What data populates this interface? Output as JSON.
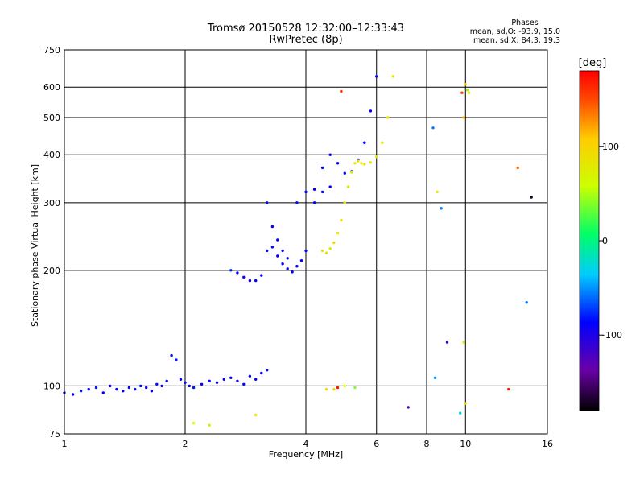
{
  "chart_data": {
    "type": "scatter",
    "title": "Tromsø 20150528 12:32:00–12:33:43",
    "subtitle": "RwPretec (8p)",
    "info": {
      "heading": "Phases",
      "line1": "mean, sd,O: -93.9, 15.0",
      "line2": "mean, sd,X: 84.3, 19.3"
    },
    "xlabel": "Frequency [MHz]",
    "ylabel": "Stationary phase Virtual Height [km]",
    "x_scale": "log",
    "y_scale": "log",
    "xlim": [
      1,
      16
    ],
    "ylim": [
      75,
      750
    ],
    "x_ticks": [
      1,
      2,
      4,
      6,
      8,
      10,
      16
    ],
    "y_ticks": [
      75,
      100,
      200,
      300,
      400,
      500,
      600,
      750
    ],
    "grid": true,
    "colorbar": {
      "label": "[deg]",
      "range": [
        -180,
        180
      ],
      "ticks": [
        -100,
        0,
        100
      ]
    },
    "series": [
      {
        "x": [
          1.0,
          1.05,
          1.1,
          1.15,
          1.2,
          1.25,
          1.3,
          1.35,
          1.4,
          1.45,
          1.5,
          1.55,
          1.6,
          1.65,
          1.7,
          1.75,
          1.8,
          1.85,
          1.9,
          1.95,
          2.0,
          2.05,
          2.1,
          2.2,
          2.3,
          2.4,
          2.5,
          2.6,
          2.7,
          2.8,
          2.9,
          3.0,
          3.1,
          3.2
        ],
        "y": [
          96,
          95,
          97,
          98,
          99,
          96,
          100,
          98,
          97,
          99,
          98,
          100,
          99,
          97,
          101,
          100,
          103,
          120,
          117,
          104,
          102,
          100,
          99,
          101,
          103,
          102,
          104,
          105,
          103,
          101,
          106,
          104,
          108,
          110
        ],
        "phase": [
          -95,
          -100,
          -92,
          -98,
          -90,
          -96,
          -99,
          -93,
          -97,
          -94,
          -92,
          -95,
          -100,
          -98,
          -90,
          -95,
          -92,
          -90,
          -85,
          -95,
          -93,
          -97,
          -90,
          -95,
          -92,
          -98,
          -96,
          -94,
          -99,
          -93,
          -91,
          -96,
          -95,
          -93
        ]
      },
      {
        "x": [
          2.6,
          2.7,
          2.8,
          2.9,
          3.0,
          3.1,
          3.2,
          3.3,
          3.4,
          3.5,
          3.6,
          3.7,
          3.8,
          3.9,
          4.0,
          4.2,
          4.4,
          4.6,
          4.8,
          5.0,
          5.2,
          5.4,
          5.6,
          5.8,
          6.0,
          3.2,
          3.3,
          3.4,
          3.5,
          3.6,
          3.8,
          4.0,
          4.2,
          4.4,
          4.6
        ],
        "y": [
          200,
          197,
          192,
          188,
          188,
          194,
          225,
          230,
          218,
          208,
          202,
          198,
          205,
          212,
          225,
          300,
          370,
          400,
          380,
          358,
          362,
          388,
          430,
          520,
          640,
          300,
          260,
          240,
          225,
          215,
          300,
          320,
          325,
          320,
          330
        ],
        "phase": [
          -85,
          -95,
          -100,
          -98,
          -96,
          -94,
          -97,
          -92,
          -99,
          -95,
          -93,
          -98,
          -96,
          -94,
          -97,
          -95,
          -92,
          -98,
          -96,
          -94,
          -93,
          -97,
          -95,
          -96,
          -98,
          -92,
          -99,
          -95,
          -94,
          -97,
          -93,
          -96,
          -95,
          -92,
          -98
        ]
      },
      {
        "x": [
          4.4,
          4.5,
          4.6,
          4.7,
          4.8,
          4.9,
          5.0,
          5.1,
          5.2,
          5.3,
          5.4,
          5.5,
          5.6,
          5.8,
          6.0,
          6.2,
          6.4,
          6.6
        ],
        "y": [
          225,
          222,
          228,
          236,
          250,
          270,
          300,
          330,
          360,
          380,
          385,
          380,
          378,
          382,
          395,
          430,
          500,
          640
        ],
        "phase": [
          90,
          85,
          82,
          88,
          84,
          86,
          80,
          78,
          83,
          85,
          84,
          82,
          86,
          84,
          83,
          80,
          78,
          82
        ]
      },
      {
        "x": [
          2.1,
          2.3,
          3.0,
          4.5,
          4.7,
          4.8,
          5.0,
          5.3,
          7.2,
          8.3,
          8.5,
          8.7,
          9.0,
          9.8,
          9.9,
          10.0,
          10.1,
          10.2,
          12.8,
          13.5,
          14.2,
          14.6,
          4.9,
          9.9,
          10.0,
          8.4,
          9.7
        ],
        "y": [
          80,
          79,
          84,
          98,
          98,
          99,
          100,
          99,
          88,
          470,
          320,
          290,
          130,
          580,
          500,
          610,
          590,
          580,
          98,
          370,
          165,
          310,
          585,
          130,
          90,
          105,
          85
        ],
        "phase": [
          60,
          70,
          80,
          90,
          100,
          170,
          60,
          40,
          -130,
          -60,
          80,
          -60,
          -120,
          150,
          120,
          100,
          40,
          80,
          170,
          140,
          -60,
          -170,
          160,
          80,
          90,
          -50,
          -30
        ]
      }
    ]
  }
}
